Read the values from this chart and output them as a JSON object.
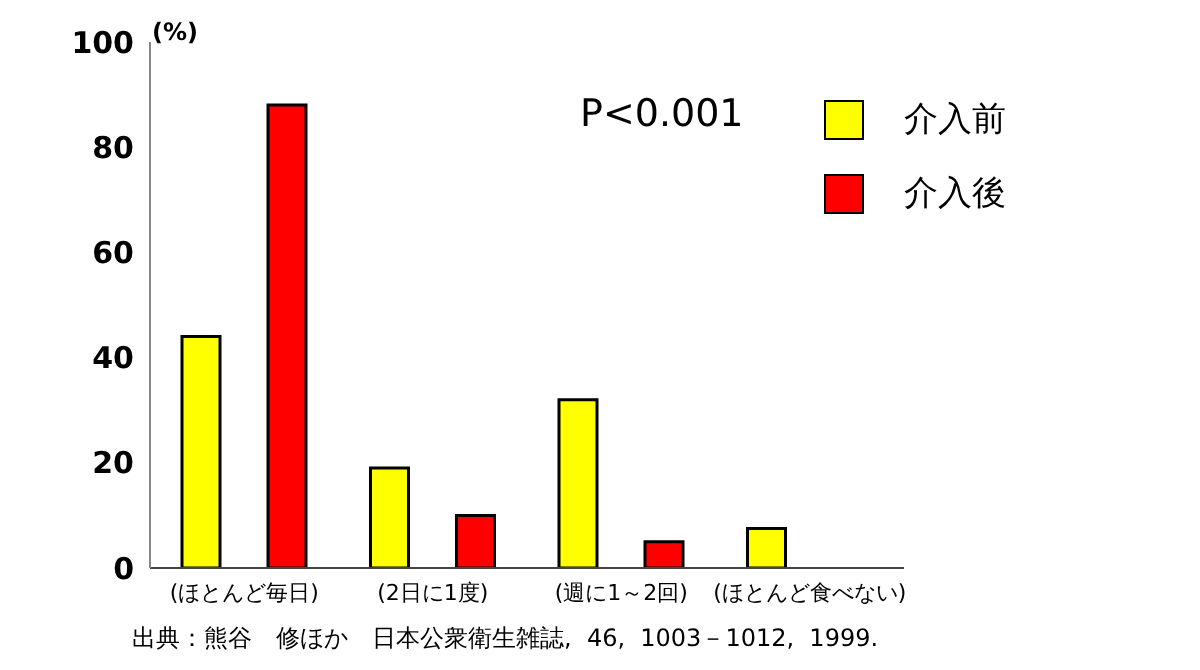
{
  "chart_data": {
    "type": "bar",
    "ylabel": "(%)",
    "categories": [
      "(ほとんど毎日)",
      "(2日に1度)",
      "(週に1～2回)",
      "(ほとんど食べない)"
    ],
    "series": [
      {
        "name": "介入前",
        "color": "#ffff00",
        "values": [
          44,
          19,
          32,
          7.5
        ]
      },
      {
        "name": "介入後",
        "color": "#ff0000",
        "values": [
          88,
          10,
          5,
          0
        ]
      }
    ],
    "ylim": [
      0,
      100
    ],
    "yticks": [
      0,
      20,
      40,
      60,
      80,
      100
    ],
    "grid": false,
    "legend": "top right",
    "annotations": [
      {
        "text": "P<0.001"
      },
      "出典：熊谷　修ほか　日本公衆衛生雑誌,  46,  1003－1012,  1999."
    ]
  }
}
